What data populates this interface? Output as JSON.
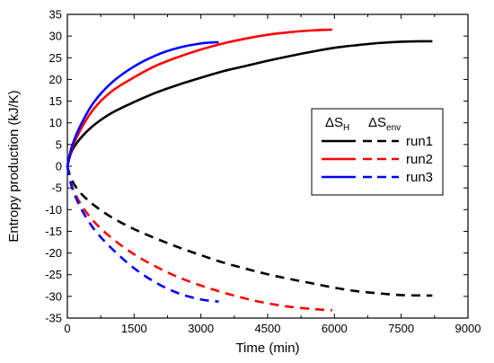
{
  "chart_data": {
    "type": "line",
    "xlabel": "Time (min)",
    "ylabel": "Entropy production (kJ/K)",
    "xlim": [
      0,
      9000
    ],
    "ylim": [
      -35,
      35
    ],
    "xticks": [
      0,
      1500,
      3000,
      4500,
      6000,
      7500,
      9000
    ],
    "yticks": [
      -35,
      -30,
      -25,
      -20,
      -15,
      -10,
      -5,
      0,
      5,
      10,
      15,
      20,
      25,
      30,
      35
    ],
    "grid": false,
    "legend": {
      "position": "right",
      "header_solid": "ΔS",
      "header_solid_sub": "H",
      "header_dashed": "ΔS",
      "header_dashed_sub": "env",
      "entries": [
        "run1",
        "run2",
        "run3"
      ]
    },
    "series": [
      {
        "name": "run1",
        "color": "#000000",
        "dS_H": {
          "x": [
            0,
            100,
            300,
            600,
            1000,
            1500,
            2000,
            2500,
            3000,
            3500,
            4000,
            4500,
            5000,
            5500,
            6000,
            6500,
            7000,
            7500,
            8000,
            8200
          ],
          "y": [
            0,
            3.5,
            6.5,
            9.5,
            12.3,
            14.8,
            17.0,
            18.8,
            20.4,
            21.9,
            23.1,
            24.3,
            25.4,
            26.4,
            27.3,
            27.9,
            28.4,
            28.7,
            28.8,
            28.8
          ]
        },
        "dS_env": {
          "x": [
            0,
            100,
            300,
            600,
            1000,
            1500,
            2000,
            2500,
            3000,
            3500,
            4000,
            4500,
            5000,
            5500,
            6000,
            6500,
            7000,
            7500,
            8000,
            8200
          ],
          "y": [
            0,
            -3.2,
            -6.2,
            -9.0,
            -11.8,
            -14.5,
            -16.7,
            -18.7,
            -20.5,
            -22.2,
            -23.6,
            -24.9,
            -26.0,
            -27.0,
            -28.0,
            -28.8,
            -29.3,
            -29.7,
            -29.8,
            -29.8
          ]
        }
      },
      {
        "name": "run2",
        "color": "#ff0000",
        "dS_H": {
          "x": [
            0,
            100,
            300,
            600,
            1000,
            1500,
            2000,
            2500,
            3000,
            3500,
            4000,
            4500,
            5000,
            5500,
            5950
          ],
          "y": [
            0,
            4.0,
            8.5,
            13.3,
            17.3,
            20.5,
            23.2,
            25.2,
            26.9,
            28.3,
            29.4,
            30.3,
            30.9,
            31.3,
            31.5
          ]
        },
        "dS_env": {
          "x": [
            0,
            100,
            300,
            600,
            1000,
            1500,
            2000,
            2500,
            3000,
            3500,
            4000,
            4500,
            5000,
            5500,
            5950
          ],
          "y": [
            0,
            -4.5,
            -8.7,
            -12.8,
            -16.6,
            -20.3,
            -23.2,
            -25.6,
            -27.5,
            -29.1,
            -30.5,
            -31.6,
            -32.4,
            -32.9,
            -33.2
          ]
        }
      },
      {
        "name": "run3",
        "color": "#0000ff",
        "dS_H": {
          "x": [
            0,
            100,
            300,
            600,
            1000,
            1500,
            2000,
            2500,
            3000,
            3400
          ],
          "y": [
            0,
            4.5,
            9.5,
            14.8,
            19.3,
            23.0,
            25.6,
            27.3,
            28.3,
            28.6
          ]
        },
        "dS_env": {
          "x": [
            0,
            100,
            300,
            600,
            1000,
            1500,
            2000,
            2500,
            3000,
            3400
          ],
          "y": [
            0,
            -4.8,
            -9.6,
            -14.5,
            -19.0,
            -23.5,
            -26.9,
            -29.3,
            -30.7,
            -31.2
          ]
        }
      }
    ]
  }
}
